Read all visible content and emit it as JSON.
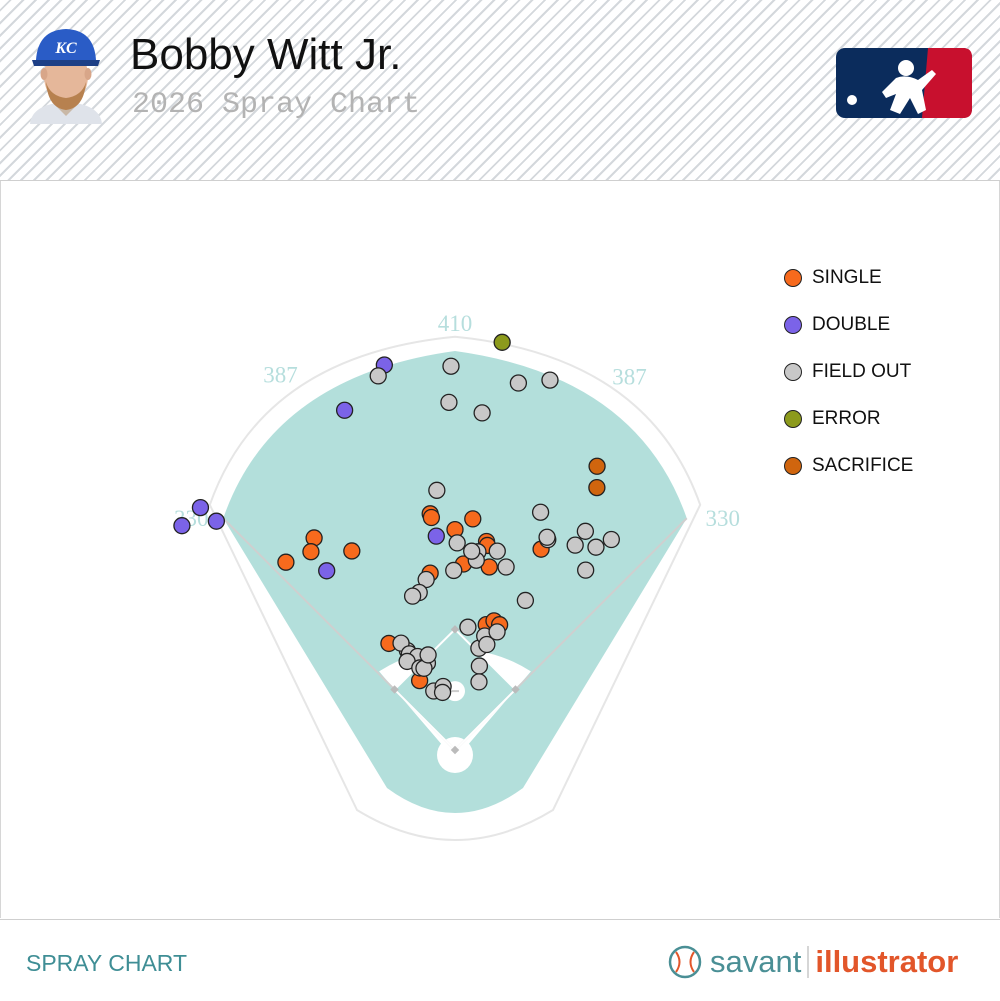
{
  "header": {
    "player_name": "Bobby Witt Jr.",
    "subtitle": "2026 Spray Chart",
    "team_cap_letters": "KC"
  },
  "footer": {
    "label": "SPRAY CHART",
    "brand_left": "savant",
    "brand_right": "illustrator"
  },
  "colors": {
    "grass": "#b3dfdb",
    "infield": "#ffffff",
    "single": "#f76a1d",
    "double": "#7b63e8",
    "field_out": "#c8c8c8",
    "error": "#8c9a1c",
    "sacrifice": "#d0650e",
    "accent": "#3f8e95"
  },
  "chart_data": {
    "type": "scatter",
    "title": "2026 Spray Chart",
    "distance_labels": [
      {
        "label": "410",
        "angle": 0
      },
      {
        "label": "387",
        "angle": -24
      },
      {
        "label": "387",
        "angle": 24
      },
      {
        "label": "330",
        "angle": -45
      },
      {
        "label": "330",
        "angle": 45
      }
    ],
    "legend": [
      {
        "key": "single",
        "label": "SINGLE",
        "color": "#f76a1d"
      },
      {
        "key": "double",
        "label": "DOUBLE",
        "color": "#7b63e8"
      },
      {
        "key": "field_out",
        "label": "FIELD OUT",
        "color": "#c8c8c8"
      },
      {
        "key": "error",
        "label": "ERROR",
        "color": "#8c9a1c"
      },
      {
        "key": "sacrifice",
        "label": "SACRIFICE",
        "color": "#d0650e"
      }
    ],
    "series": [
      {
        "key": "single",
        "points": [
          [
            -33.6,
            268
          ],
          [
            -42,
            266
          ],
          [
            -36,
            258
          ],
          [
            -27.4,
            236
          ],
          [
            -6,
            250
          ],
          [
            -5.8,
            246
          ],
          [
            0,
            232
          ],
          [
            4.4,
            244
          ],
          [
            8.6,
            222
          ],
          [
            9,
            218
          ],
          [
            -8,
            188
          ],
          [
            2.6,
            196
          ],
          [
            10.6,
            196
          ],
          [
            23.2,
            230
          ],
          [
            -31.8,
            132
          ],
          [
            -27,
            82
          ],
          [
            14,
            136
          ],
          [
            16.8,
            142
          ],
          [
            19.6,
            140
          ]
        ]
      },
      {
        "key": "double",
        "points": [
          [
            -10.4,
            412
          ],
          [
            -18,
            376
          ],
          [
            -46.4,
            370
          ],
          [
            -46.2,
            348
          ],
          [
            -50.6,
            372
          ],
          [
            -5,
            226
          ],
          [
            -35.6,
            232
          ]
        ]
      },
      {
        "key": "field_out",
        "points": [
          [
            -0.6,
            404
          ],
          [
            -11.6,
            402
          ],
          [
            9.8,
            392
          ],
          [
            14.4,
            402
          ],
          [
            -1,
            366
          ],
          [
            4.6,
            356
          ],
          [
            -4,
            274
          ],
          [
            0.6,
            218
          ],
          [
            6.6,
            210
          ],
          [
            19.8,
            266
          ],
          [
            23.8,
            242
          ],
          [
            23.4,
            244
          ],
          [
            30.8,
            268
          ],
          [
            30.4,
            250
          ],
          [
            34.8,
            260
          ],
          [
            36.6,
            276
          ],
          [
            36,
            234
          ],
          [
            25.2,
            174
          ],
          [
            12,
            214
          ],
          [
            15.6,
            200
          ],
          [
            6.4,
            201
          ],
          [
            4.8,
            210
          ],
          [
            -9.6,
            182
          ],
          [
            -12.8,
            170
          ],
          [
            -15.4,
            168
          ],
          [
            -0.4,
            189
          ],
          [
            6,
            130
          ],
          [
            13.2,
            110
          ],
          [
            14.6,
            124
          ],
          [
            16.8,
            116
          ],
          [
            19.6,
            132
          ],
          [
            16.2,
            92
          ],
          [
            19.4,
            76
          ],
          [
            -17.6,
            96
          ],
          [
            -25.6,
            116
          ],
          [
            -26.8,
            126
          ],
          [
            -21.6,
            104
          ],
          [
            -25.4,
            112
          ],
          [
            -21.8,
            106
          ],
          [
            -28.4,
            106
          ],
          [
            -23.2,
            94
          ],
          [
            -20.8,
            92
          ],
          [
            -15.8,
            104
          ],
          [
            -19.8,
            66
          ],
          [
            -10.6,
            68
          ],
          [
            -12.2,
            62
          ]
        ]
      },
      {
        "key": "error",
        "points": [
          [
            6.6,
            432
          ]
        ]
      },
      {
        "key": "sacrifice",
        "points": [
          [
            26.6,
            334
          ],
          [
            28.4,
            314
          ]
        ]
      }
    ]
  }
}
